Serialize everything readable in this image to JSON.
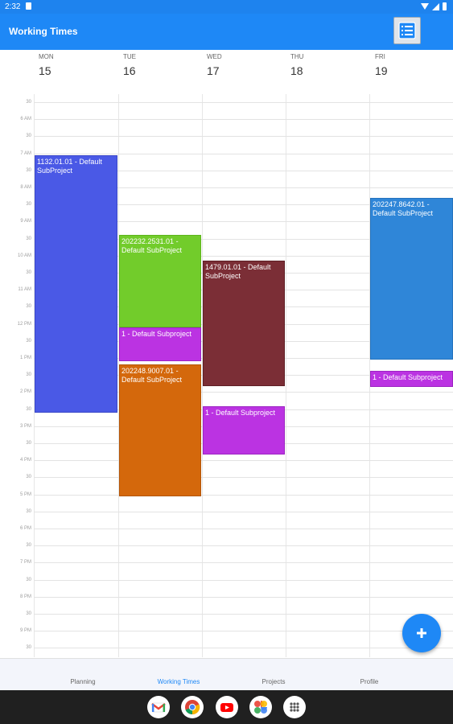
{
  "status_bar": {
    "time": "2:32"
  },
  "app_bar": {
    "title": "Working Times"
  },
  "days": [
    {
      "name": "MON",
      "date": "15"
    },
    {
      "name": "TUE",
      "date": "16"
    },
    {
      "name": "WED",
      "date": "17"
    },
    {
      "name": "THU",
      "date": "18"
    },
    {
      "name": "FRI",
      "date": "19"
    }
  ],
  "time_labels": [
    "30",
    "6 AM",
    "30",
    "7 AM",
    "30",
    "8 AM",
    "30",
    "9 AM",
    "30",
    "10 AM",
    "30",
    "11 AM",
    "30",
    "12 PM",
    "30",
    "1 PM",
    "30",
    "2 PM",
    "30",
    "3 PM",
    "30",
    "4 PM",
    "30",
    "5 PM",
    "30",
    "6 PM",
    "30",
    "7 PM",
    "30",
    "8 PM",
    "30",
    "9 PM",
    "30"
  ],
  "events": [
    {
      "label": "1132.01.01 - Default SubProject",
      "color": "#4a59e6"
    },
    {
      "label": "202232.2531.01 - Default SubProject",
      "color": "#72cc2b"
    },
    {
      "label": "1 - Default Subproject",
      "color": "#bb33e2"
    },
    {
      "label": "202248.9007.01 - Default SubProject",
      "color": "#d4680c"
    },
    {
      "label": "1479.01.01 - Default SubProject",
      "color": "#7b2e36"
    },
    {
      "label": "1 - Default Subproject",
      "color": "#bb33e2"
    },
    {
      "label": "202247.8642.01 - Default SubProject",
      "color": "#2f86d8"
    },
    {
      "label": "1 - Default Subproject",
      "color": "#bb33e2"
    }
  ],
  "fab": {
    "icon": "plus-icon"
  },
  "bottom_nav": {
    "items": [
      "Planning",
      "Working Times",
      "Projects",
      "Profile"
    ],
    "active": "Working Times"
  },
  "dock": {
    "icons": [
      "gmail-icon",
      "chrome-icon",
      "youtube-icon",
      "photos-icon",
      "app-drawer-icon"
    ]
  },
  "colors": {
    "primary": "#1e88f6",
    "status_bar": "#1e83ee",
    "system_bar": "#202020"
  }
}
